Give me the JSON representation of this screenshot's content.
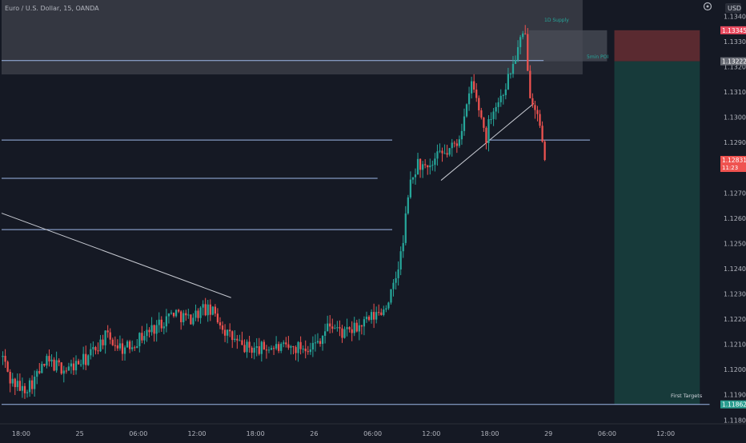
{
  "header": {
    "symbol_title": "Euro / U.S. Dollar, 15, OANDA",
    "currency_badge": "USD"
  },
  "colors": {
    "background": "#151924",
    "up_candle": "#26a69a",
    "down_candle": "#ef5350",
    "level_line": "#9db7e8",
    "supply_zone": "#3a3d47",
    "stop_zone": "#5a2a30",
    "target_zone": "#173a3a",
    "last_price_badge": "#ef5350",
    "entry_badge": "#6b6e77",
    "stop_badge": "#e84a5f",
    "target_badge": "#2a9d8f"
  },
  "annotations": {
    "supply_label": "1D Supply",
    "poi_label": "5min POI",
    "target_label": "First Targets"
  },
  "chart_data": {
    "type": "candlestick",
    "title": "Euro / U.S. Dollar, 15, OANDA",
    "xlabel": "",
    "ylabel": "",
    "ylim": [
      1.11785,
      1.13465
    ],
    "x_ticks": [
      {
        "label": "18:00",
        "bar": 8
      },
      {
        "label": "25",
        "bar": 32
      },
      {
        "label": "06:00",
        "bar": 56
      },
      {
        "label": "12:00",
        "bar": 80
      },
      {
        "label": "18:00",
        "bar": 104
      },
      {
        "label": "26",
        "bar": 128
      },
      {
        "label": "06:00",
        "bar": 152
      },
      {
        "label": "12:00",
        "bar": 176
      },
      {
        "label": "18:00",
        "bar": 200
      },
      {
        "label": "29",
        "bar": 224
      },
      {
        "label": "06:00",
        "bar": 248
      },
      {
        "label": "12:00",
        "bar": 272
      }
    ],
    "y_ticks": [
      1.134,
      1.133,
      1.132,
      1.131,
      1.13,
      1.129,
      1.128,
      1.127,
      1.126,
      1.125,
      1.124,
      1.123,
      1.122,
      1.121,
      1.12,
      1.119,
      1.118
    ],
    "y_tick_labels": [
      "1.13400",
      "1.13300",
      "1.13200",
      "1.13100",
      "1.13000",
      "1.12900",
      "1.12800",
      "1.12700",
      "1.12600",
      "1.12500",
      "1.12400",
      "1.12300",
      "1.12200",
      "1.12100",
      "1.12000",
      "1.11900",
      "1.11800"
    ],
    "waypoints": [
      [
        0,
        1.1205
      ],
      [
        3,
        1.1196
      ],
      [
        8,
        1.1192
      ],
      [
        12,
        1.1195
      ],
      [
        18,
        1.1203
      ],
      [
        26,
        1.12
      ],
      [
        34,
        1.1204
      ],
      [
        42,
        1.1213
      ],
      [
        50,
        1.1208
      ],
      [
        58,
        1.1214
      ],
      [
        64,
        1.1218
      ],
      [
        70,
        1.1223
      ],
      [
        76,
        1.122
      ],
      [
        82,
        1.1224
      ],
      [
        87,
        1.1222
      ],
      [
        92,
        1.1214
      ],
      [
        98,
        1.1209
      ],
      [
        104,
        1.1208
      ],
      [
        110,
        1.1209
      ],
      [
        116,
        1.1208
      ],
      [
        122,
        1.1209
      ],
      [
        128,
        1.121
      ],
      [
        134,
        1.1218
      ],
      [
        140,
        1.1214
      ],
      [
        146,
        1.1217
      ],
      [
        152,
        1.1221
      ],
      [
        156,
        1.1224
      ],
      [
        160,
        1.1232
      ],
      [
        164,
        1.125
      ],
      [
        166,
        1.127
      ],
      [
        170,
        1.1282
      ],
      [
        174,
        1.1278
      ],
      [
        178,
        1.1284
      ],
      [
        182,
        1.1286
      ],
      [
        186,
        1.129
      ],
      [
        190,
        1.1303
      ],
      [
        192,
        1.1314
      ],
      [
        196,
        1.13
      ],
      [
        198,
        1.1292
      ],
      [
        200,
        1.1302
      ],
      [
        204,
        1.1308
      ],
      [
        208,
        1.1318
      ],
      [
        212,
        1.133
      ],
      [
        214,
        1.1332
      ],
      [
        216,
        1.131
      ],
      [
        218,
        1.1305
      ],
      [
        220,
        1.1295
      ],
      [
        222,
        1.1283
      ]
    ],
    "last_close": 1.12831,
    "levels": [
      {
        "name": "resistance-1",
        "y": 1.13225,
        "x_end": 222
      },
      {
        "name": "level-1",
        "y": 1.1291,
        "x_end": 160
      },
      {
        "name": "level-2",
        "y": 1.12758,
        "x_end": 154
      },
      {
        "name": "level-3",
        "y": 1.12555,
        "x_end": 160
      },
      {
        "name": "level-4",
        "y": 1.1291,
        "x_start": 200,
        "x_end": 241
      },
      {
        "name": "first-targets",
        "y": 1.11862,
        "x_end": 290
      }
    ],
    "trendlines": [
      {
        "name": "descending-trendline",
        "points": [
          [
            0,
            1.1262
          ],
          [
            94,
            1.12285
          ]
        ]
      },
      {
        "name": "ascending-trendline",
        "points": [
          [
            180,
            1.1275
          ],
          [
            218,
            1.13055
          ]
        ]
      }
    ],
    "zones": [
      {
        "name": "supply-zone",
        "x_start": 0,
        "x_end": 238,
        "y_top": 1.13465,
        "y_bottom": 1.1317
      },
      {
        "name": "poi-zone",
        "x_start": 216,
        "x_end": 248,
        "y_top": 1.13345,
        "y_bottom": 1.13222
      },
      {
        "name": "stop-zone",
        "x_start": 251,
        "x_end": 286,
        "y_top": 1.13345,
        "y_bottom": 1.13222
      },
      {
        "name": "target-zone",
        "x_start": 251,
        "x_end": 286,
        "y_top": 1.13222,
        "y_bottom": 1.11862
      }
    ],
    "price_badges": [
      {
        "name": "stop-price-badge",
        "value": "1.13345",
        "y": 1.13345,
        "color": "#e84a5f"
      },
      {
        "name": "entry-price-badge",
        "value": "1.13222",
        "y": 1.13222,
        "color": "#6b6e77"
      },
      {
        "name": "last-price-badge",
        "value": "1.12831",
        "sub": "11:23",
        "y": 1.12831,
        "color": "#ef5350"
      },
      {
        "name": "target-price-badge",
        "value": "1.11862",
        "y": 1.11862,
        "color": "#2a9d8f"
      }
    ],
    "grid": false,
    "legend": "none"
  }
}
